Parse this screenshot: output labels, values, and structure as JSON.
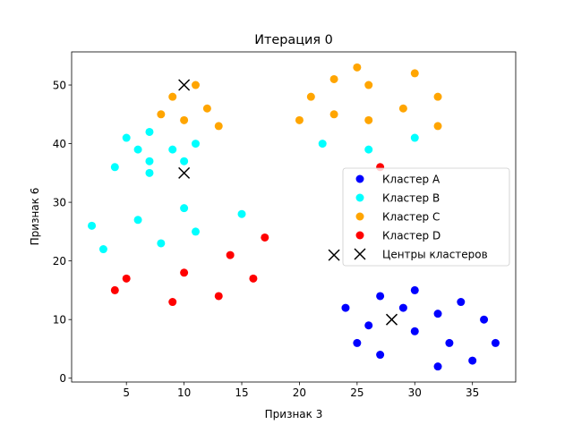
{
  "chart_data": {
    "type": "scatter",
    "title": "Итерация 0",
    "xlabel": "Признак 3",
    "ylabel": "Признак 6",
    "xlim": [
      0.25,
      38.75
    ],
    "ylim": [
      -0.65,
      55.65
    ],
    "xticks": [
      5,
      10,
      15,
      20,
      25,
      30,
      35
    ],
    "yticks": [
      0,
      10,
      20,
      30,
      40,
      50
    ],
    "grid": false,
    "legend_position": "center-right",
    "series": [
      {
        "name": "Кластер A",
        "color": "#0000ff",
        "marker": "circle",
        "points": [
          [
            24,
            12
          ],
          [
            25,
            6
          ],
          [
            26,
            9
          ],
          [
            27,
            14
          ],
          [
            27,
            4
          ],
          [
            29,
            12
          ],
          [
            30,
            15
          ],
          [
            30,
            8
          ],
          [
            32,
            11
          ],
          [
            32,
            2
          ],
          [
            33,
            6
          ],
          [
            34,
            13
          ],
          [
            35,
            3
          ],
          [
            36,
            10
          ],
          [
            37,
            6
          ]
        ]
      },
      {
        "name": "Кластер B",
        "color": "#00ffff",
        "marker": "circle",
        "points": [
          [
            2,
            26
          ],
          [
            3,
            22
          ],
          [
            4,
            36
          ],
          [
            5,
            41
          ],
          [
            6,
            39
          ],
          [
            6,
            27
          ],
          [
            7,
            42
          ],
          [
            7,
            37
          ],
          [
            7,
            35
          ],
          [
            8,
            23
          ],
          [
            9,
            39
          ],
          [
            10,
            37
          ],
          [
            10,
            29
          ],
          [
            11,
            40
          ],
          [
            11,
            25
          ],
          [
            15,
            28
          ],
          [
            22,
            40
          ],
          [
            26,
            39
          ],
          [
            30,
            41
          ]
        ]
      },
      {
        "name": "Кластер C",
        "color": "#ffa500",
        "marker": "circle",
        "points": [
          [
            8,
            45
          ],
          [
            9,
            48
          ],
          [
            10,
            44
          ],
          [
            11,
            50
          ],
          [
            12,
            46
          ],
          [
            13,
            43
          ],
          [
            20,
            44
          ],
          [
            21,
            48
          ],
          [
            23,
            51
          ],
          [
            23,
            45
          ],
          [
            25,
            53
          ],
          [
            26,
            50
          ],
          [
            26,
            44
          ],
          [
            29,
            46
          ],
          [
            30,
            52
          ],
          [
            32,
            48
          ],
          [
            32,
            43
          ]
        ]
      },
      {
        "name": "Кластер D",
        "color": "#ff0000",
        "marker": "circle",
        "points": [
          [
            4,
            15
          ],
          [
            5,
            17
          ],
          [
            9,
            13
          ],
          [
            10,
            18
          ],
          [
            13,
            14
          ],
          [
            14,
            21
          ],
          [
            16,
            17
          ],
          [
            17,
            24
          ],
          [
            27,
            36
          ]
        ]
      },
      {
        "name": "Центры кластеров",
        "color": "#000000",
        "marker": "x",
        "points": [
          [
            10,
            50
          ],
          [
            10,
            35
          ],
          [
            23,
            21
          ],
          [
            28,
            10
          ]
        ]
      }
    ]
  }
}
